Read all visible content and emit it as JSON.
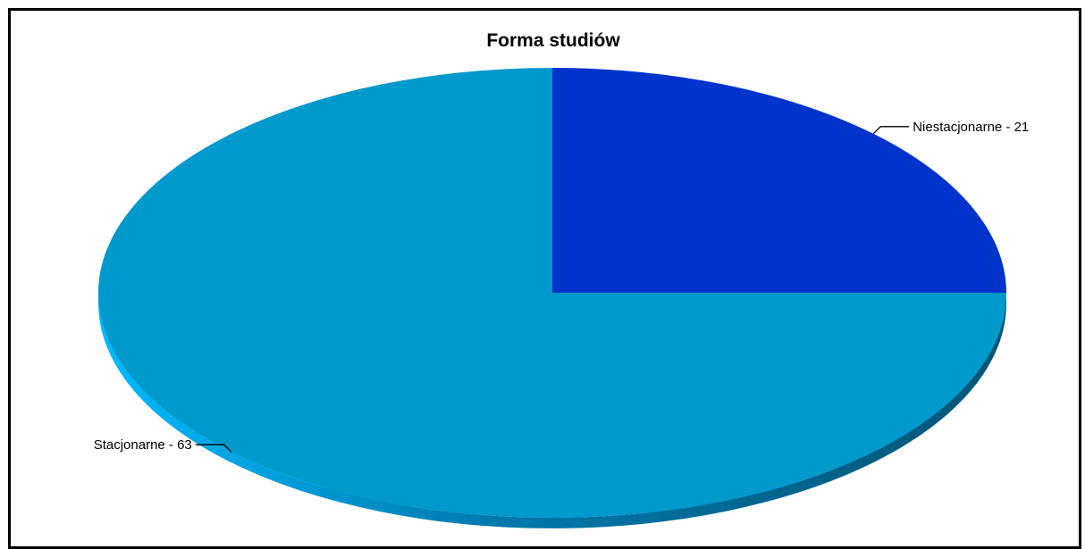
{
  "chart_data": {
    "type": "pie",
    "title": "Forma studiów",
    "three_d": true,
    "slices": [
      {
        "label": "Niestacjonarne - 21",
        "category": "Niestacjonarne",
        "value": 21,
        "color": "#0033CC"
      },
      {
        "label": "Stacjonarne - 63",
        "category": "Stacjonarne",
        "value": 63,
        "color": "#0099CC"
      }
    ],
    "side_colors": {
      "dark": "#005577",
      "light": "#00BBFF"
    }
  }
}
